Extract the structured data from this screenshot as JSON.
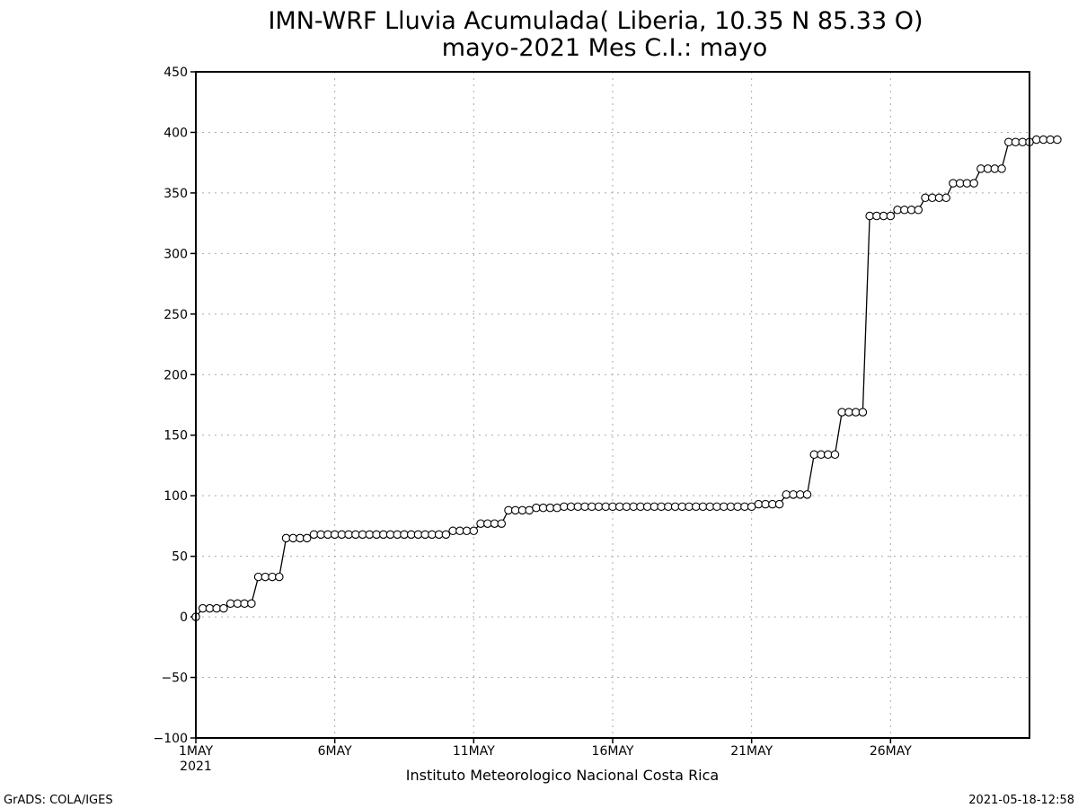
{
  "chart_data": {
    "type": "line",
    "title": "IMN-WRF  Lluvia Acumulada( Liberia, 10.35  N 85.33  O)",
    "subtitle": "mayo-2021 Mes C.I.: mayo",
    "xlabel": "Instituto Meteorologico Nacional Costa Rica",
    "ylabel": "",
    "ylim": [
      -100,
      450
    ],
    "xlim": [
      "2021-05-01 00:00",
      "2021-05-31 00:00"
    ],
    "grid": true,
    "y_ticks": [
      "450",
      "400",
      "350",
      "300",
      "250",
      "200",
      "150",
      "100",
      "50",
      "0",
      "-50",
      "-100"
    ],
    "x_ticks": [
      {
        "label": "1MAY",
        "sub": "2021",
        "date": "2021-05-01"
      },
      {
        "label": "6MAY",
        "sub": "",
        "date": "2021-05-06"
      },
      {
        "label": "11MAY",
        "sub": "",
        "date": "2021-05-11"
      },
      {
        "label": "16MAY",
        "sub": "",
        "date": "2021-05-16"
      },
      {
        "label": "21MAY",
        "sub": "",
        "date": "2021-05-21"
      },
      {
        "label": "26MAY",
        "sub": "",
        "date": "2021-05-26"
      }
    ],
    "series": [
      {
        "marker": "open-circle",
        "color": "#000000",
        "step_hours": 6,
        "start": "2021-05-01 00:00",
        "values": [
          0,
          7,
          7,
          7,
          7,
          11,
          11,
          11,
          11,
          33,
          33,
          33,
          33,
          65,
          65,
          65,
          65,
          68,
          68,
          68,
          68,
          68,
          68,
          68,
          68,
          68,
          68,
          68,
          68,
          68,
          68,
          68,
          68,
          68,
          68,
          68,
          68,
          71,
          71,
          71,
          71,
          77,
          77,
          77,
          77,
          88,
          88,
          88,
          88,
          90,
          90,
          90,
          90,
          91,
          91,
          91,
          91,
          91,
          91,
          91,
          91,
          91,
          91,
          91,
          91,
          91,
          91,
          91,
          91,
          91,
          91,
          91,
          91,
          91,
          91,
          91,
          91,
          91,
          91,
          91,
          91,
          93,
          93,
          93,
          93,
          101,
          101,
          101,
          101,
          134,
          134,
          134,
          134,
          169,
          169,
          169,
          169,
          331,
          331,
          331,
          331,
          336,
          336,
          336,
          336,
          346,
          346,
          346,
          346,
          358,
          358,
          358,
          358,
          370,
          370,
          370,
          370,
          392,
          392,
          392,
          392,
          394,
          394,
          394,
          394
        ]
      }
    ]
  },
  "footer": {
    "left": "GrADS: COLA/IGES",
    "right": "2021-05-18-12:58"
  }
}
